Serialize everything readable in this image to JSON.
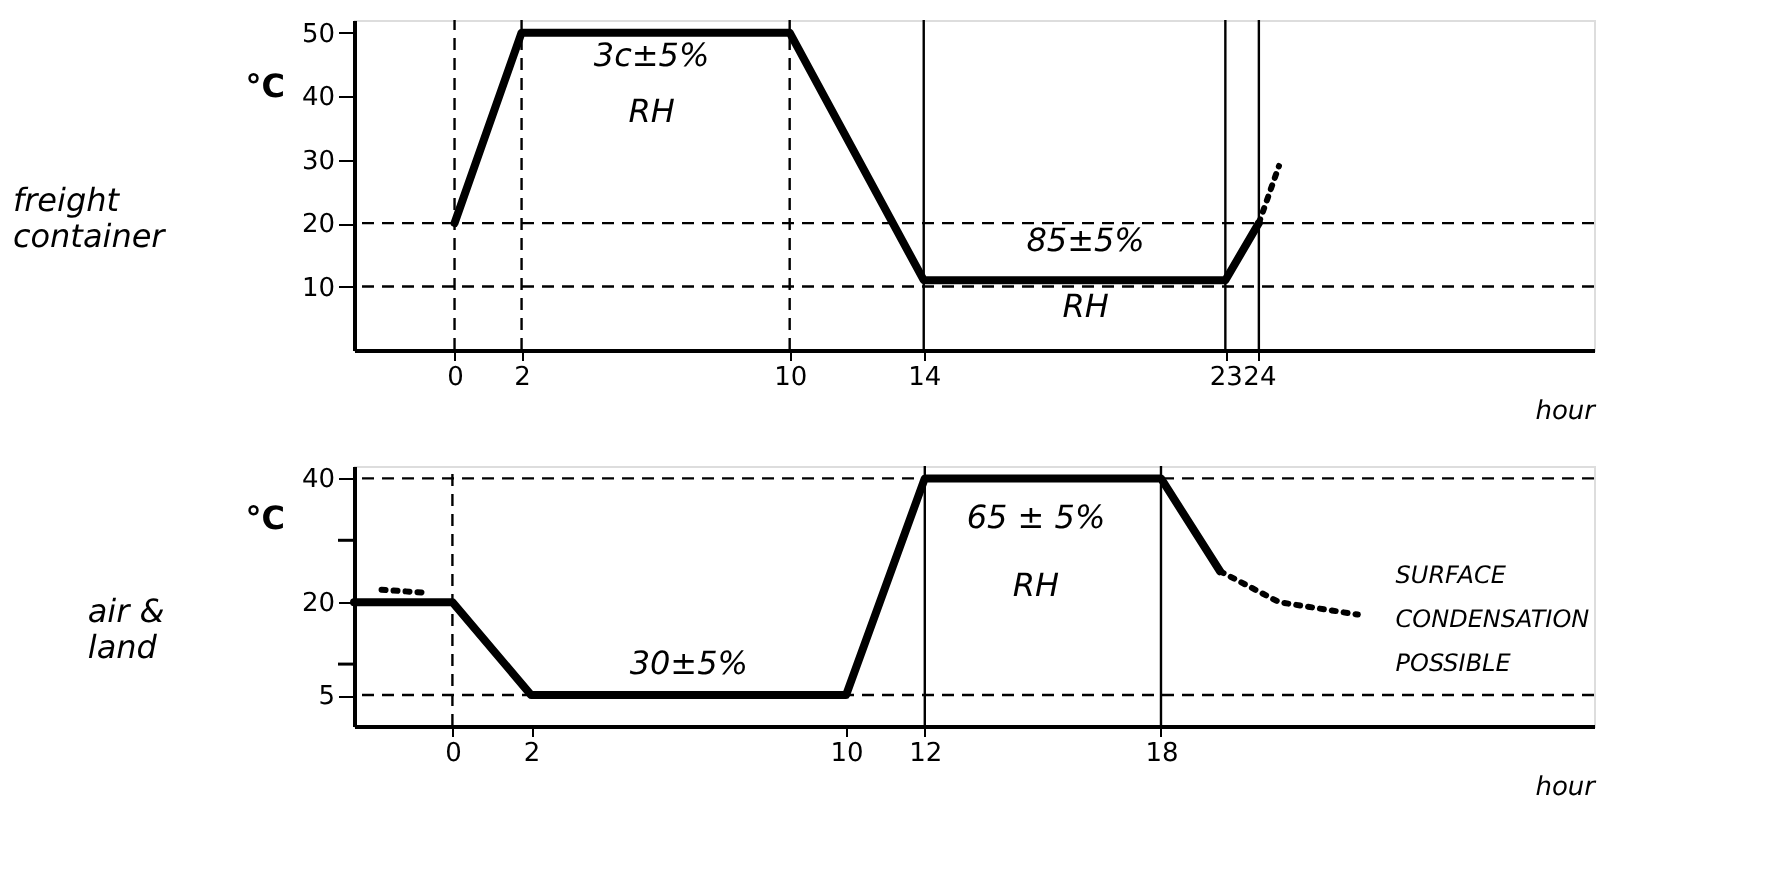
{
  "chart_data": [
    {
      "type": "line",
      "title": "freight\ncontainer",
      "xlabel": "hour",
      "ylabel": "°C",
      "xlim": [
        -3,
        34
      ],
      "ylim": [
        0,
        52
      ],
      "xticks": [
        0,
        2,
        10,
        14,
        23,
        24
      ],
      "yticks": [
        10,
        20,
        30,
        40,
        50
      ],
      "grid": false,
      "marker": "none",
      "series": [
        {
          "color": "#000000",
          "line_style": "solid",
          "x": [
            0,
            2,
            10,
            14,
            23,
            24
          ],
          "values": [
            20,
            50,
            50,
            11,
            11,
            20
          ]
        },
        {
          "color": "#000000",
          "line_style": "dotted",
          "x": [
            24,
            24.6
          ],
          "values": [
            20,
            29
          ]
        }
      ],
      "ref_lines": [
        {
          "axis": "y",
          "value": 20,
          "line_style": "dashed"
        },
        {
          "axis": "y",
          "value": 10,
          "line_style": "dashed"
        },
        {
          "axis": "x",
          "value": 0,
          "line_style": "dashed"
        },
        {
          "axis": "x",
          "value": 2,
          "line_style": "dashed"
        },
        {
          "axis": "x",
          "value": 10,
          "line_style": "dashed"
        },
        {
          "axis": "x",
          "value": 14,
          "line_style": "solid"
        },
        {
          "axis": "x",
          "value": 23,
          "line_style": "solid"
        },
        {
          "axis": "x",
          "value": 24,
          "line_style": "solid"
        }
      ],
      "annotations": [
        "3c±5%",
        "RH",
        "85±5%",
        "RH"
      ]
    },
    {
      "type": "line",
      "title": "air &\nland",
      "xlabel": "hour",
      "ylabel": "°C",
      "xlim": [
        -2.5,
        29
      ],
      "ylim": [
        0,
        42
      ],
      "xticks": [
        0,
        2,
        10,
        12,
        18
      ],
      "yticks": [
        5,
        {
          "value": 10,
          "label": null
        },
        20,
        {
          "value": 30,
          "label": null
        },
        40
      ],
      "grid": false,
      "marker": "none",
      "series": [
        {
          "color": "#000000",
          "line_style": "solid",
          "x": [
            -2.5,
            0,
            2,
            10,
            12,
            18,
            19.5
          ],
          "values": [
            20,
            20,
            5,
            5,
            40,
            40,
            25
          ]
        },
        {
          "color": "#000000",
          "line_style": "dotted",
          "x": [
            19.5,
            21,
            23
          ],
          "values": [
            25,
            20,
            18
          ]
        },
        {
          "color": "#000000",
          "line_style": "dotted",
          "x": [
            -1.8,
            -0.6
          ],
          "values": [
            22,
            21.5
          ]
        }
      ],
      "ref_lines": [
        {
          "axis": "y",
          "value": 40,
          "line_style": "dashed"
        },
        {
          "axis": "y",
          "value": 5,
          "line_style": "dashed"
        },
        {
          "axis": "x",
          "value": 0,
          "line_style": "dashed"
        },
        {
          "axis": "x",
          "value": 12,
          "line_style": "solid"
        },
        {
          "axis": "x",
          "value": 18,
          "line_style": "solid"
        }
      ],
      "annotations": [
        "30±5%",
        "65 ± 5%",
        "RH",
        "SURFACE\nCONDENSATION\nPOSSIBLE"
      ]
    }
  ]
}
